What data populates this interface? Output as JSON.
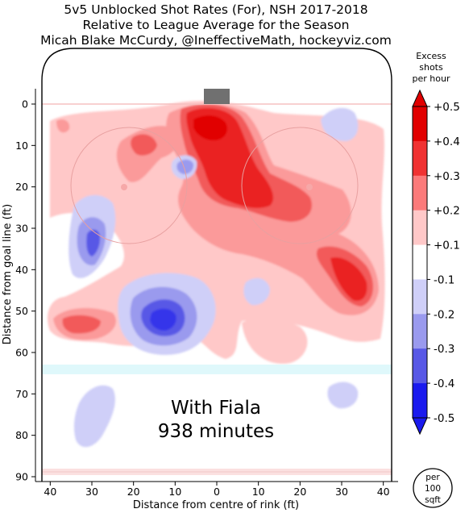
{
  "chart_data": {
    "type": "heatmap",
    "title_lines": [
      "5v5 Unblocked Shot Rates (For), NSH 2017-2018",
      "Relative to League Average for the Season",
      "Micah Blake McCurdy, @IneffectiveMath, hockeyviz.com"
    ],
    "xlabel": "Distance from centre of rink (ft)",
    "ylabel": "Distance from goal line (ft)",
    "xlim": [
      42,
      -42
    ],
    "ylim": [
      -6,
      90
    ],
    "xticks": [
      40,
      30,
      20,
      10,
      0,
      10,
      20,
      30,
      40
    ],
    "xtick_values": [
      -40,
      -30,
      -20,
      -10,
      0,
      10,
      20,
      30,
      40
    ],
    "yticks": [
      0,
      10,
      20,
      30,
      40,
      50,
      60,
      70,
      80,
      90
    ],
    "annotation_lines": [
      "With Fiala",
      "938 minutes"
    ],
    "colorbar": {
      "title_lines": [
        "Excess",
        "shots",
        "per hour"
      ],
      "levels": [
        "+0.5",
        "+0.4",
        "+0.3",
        "+0.2",
        "+0.1",
        "-0.1",
        "-0.2",
        "-0.3",
        "-0.4",
        "-0.5"
      ],
      "level_values": [
        0.5,
        0.4,
        0.3,
        0.2,
        0.1,
        -0.1,
        -0.2,
        -0.3,
        -0.4,
        -0.5
      ],
      "colors": [
        "#e10000",
        "#f03232",
        "#fb7a7a",
        "#ffc8c8",
        "#ffffff",
        "#cfcff8",
        "#9a9aee",
        "#5858e6",
        "#1a1aee"
      ]
    },
    "unit_badge_lines": [
      "per",
      "100",
      "sqft"
    ],
    "contour_blobs": [
      {
        "x": 2,
        "y": 6,
        "rx": 8,
        "ry": 7,
        "level": 0.5
      },
      {
        "x": 2,
        "y": 15,
        "rx": 7,
        "ry": 11,
        "level": 0.4
      },
      {
        "x": 5,
        "y": 20,
        "rx": 14,
        "ry": 12,
        "level": 0.3
      },
      {
        "x": 30,
        "y": 45,
        "rx": 5,
        "ry": 6,
        "level": 0.3
      },
      {
        "x": 22,
        "y": 37,
        "rx": 15,
        "ry": 9,
        "level": 0.2
      },
      {
        "x": -15,
        "y": 44,
        "rx": 10,
        "ry": 10,
        "level": -0.2
      },
      {
        "x": 13,
        "y": 53,
        "rx": 9,
        "ry": 6,
        "level": -0.3
      },
      {
        "x": 30,
        "y": 34,
        "rx": 3,
        "ry": 5,
        "level": -0.2
      },
      {
        "x": 35,
        "y": 80,
        "rx": 4,
        "ry": 7,
        "level": -0.1
      },
      {
        "x": -32,
        "y": 71,
        "rx": 5,
        "ry": 4,
        "level": -0.1
      }
    ]
  }
}
